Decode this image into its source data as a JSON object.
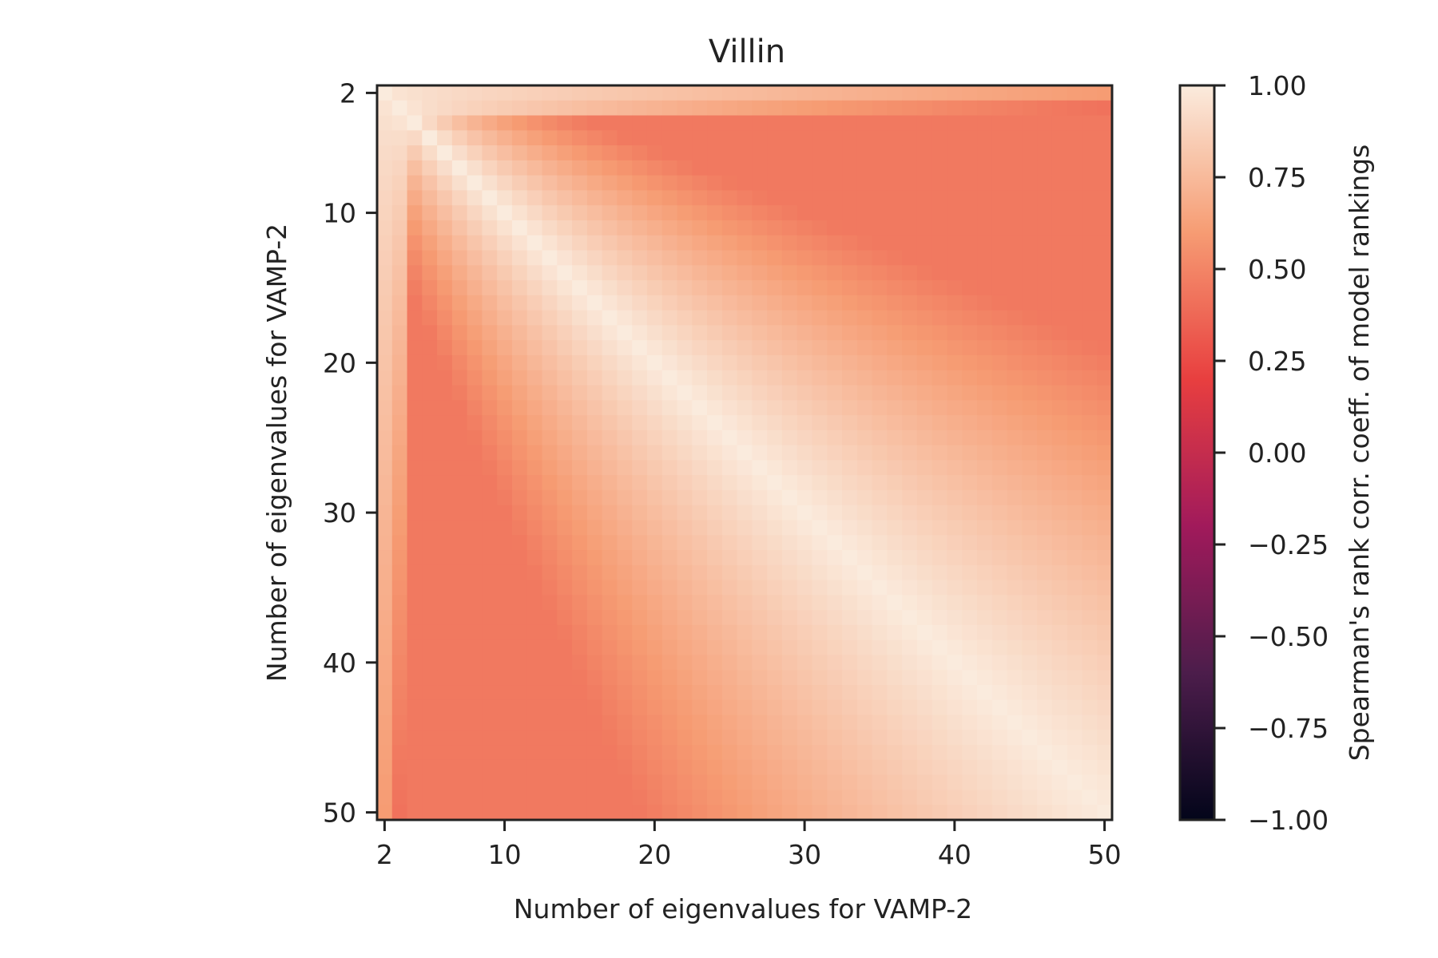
{
  "chart_data": {
    "type": "heatmap",
    "title": "Villin",
    "xlabel": "Number of eigenvalues for VAMP-2",
    "ylabel": "Number of eigenvalues for VAMP-2",
    "x_range": [
      2,
      50
    ],
    "y_range": [
      2,
      50
    ],
    "y_axis_inverted": true,
    "x_ticks": [
      2,
      10,
      20,
      30,
      40,
      50
    ],
    "x_tick_labels": [
      "2",
      "10",
      "20",
      "30",
      "40",
      "50"
    ],
    "y_ticks": [
      2,
      10,
      20,
      30,
      40,
      50
    ],
    "y_tick_labels": [
      "2",
      "10",
      "20",
      "30",
      "40",
      "50"
    ],
    "grid": false,
    "colorbar": {
      "label": "Spearman's rank corr. coeff. of model rankings",
      "range": [
        -1.0,
        1.0
      ],
      "ticks": [
        1.0,
        0.75,
        0.5,
        0.25,
        0.0,
        -0.25,
        -0.5,
        -0.75,
        -1.0
      ],
      "tick_labels": [
        "1.00",
        "0.75",
        "0.50",
        "0.25",
        "0.00",
        "−0.25",
        "−0.50",
        "−0.75",
        "−1.00"
      ],
      "colormap": "rocket",
      "colormap_stops": [
        "#03051a",
        "#4c1d4b",
        "#a11a5b",
        "#e83f3f",
        "#f69c73",
        "#faebdd"
      ]
    },
    "values_description": "symmetric matrix of Spearman correlations between rankings using i and j eigenvalues (i,j = 2..50)",
    "approx_values": {
      "diagonal": 1.0,
      "row_2_vs_50": 0.6,
      "row_3_vs_50": 0.42,
      "row_3_vs_20": 0.64,
      "row_5_vs_50": 0.6,
      "row_10_vs_50": 0.7,
      "row_20_vs_50": 0.85,
      "row_30_vs_50": 0.93,
      "row_40_vs_50": 0.97
    }
  }
}
